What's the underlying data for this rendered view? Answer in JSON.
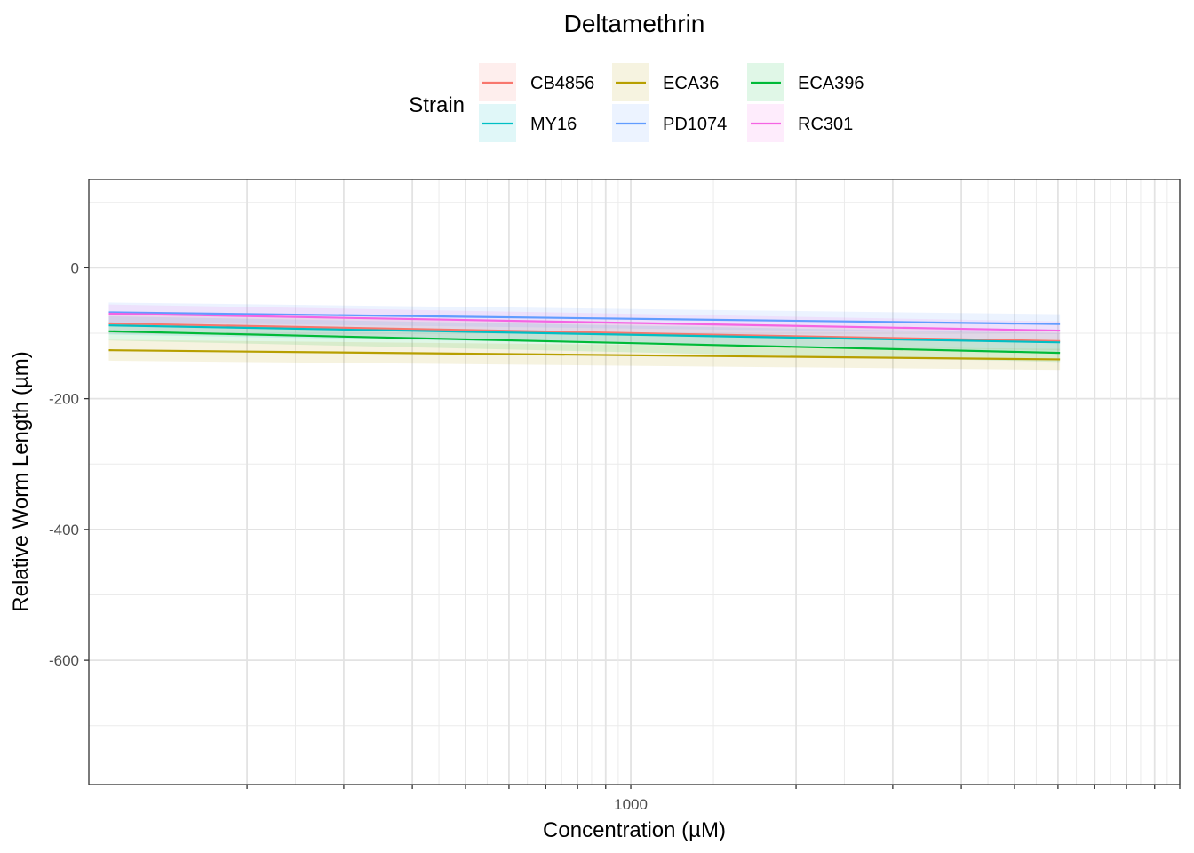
{
  "chart_data": {
    "type": "line",
    "title": "Deltamethrin",
    "xlabel": "Concentration (µM)",
    "ylabel": "Relative Worm Length (µm)",
    "x_scale": "log10",
    "xlim": [
      103,
      10000
    ],
    "ylim": [
      -790,
      135
    ],
    "x_ticks": [
      {
        "value": 1000,
        "label": "1000"
      }
    ],
    "y_ticks": [
      {
        "value": 0,
        "label": "0"
      },
      {
        "value": -200,
        "label": "-200"
      },
      {
        "value": -400,
        "label": "-400"
      },
      {
        "value": -600,
        "label": "-600"
      }
    ],
    "grid": true,
    "legend": {
      "title": "Strain",
      "position": "top"
    },
    "x": [
      112,
      6050
    ],
    "series": [
      {
        "name": "CB4856",
        "color": "#F8766D",
        "values": [
          -85,
          -112
        ],
        "ci_low": [
          -100,
          -126
        ],
        "ci_high": [
          -70,
          -98
        ]
      },
      {
        "name": "ECA36",
        "color": "#B79F00",
        "values": [
          -126,
          -140
        ],
        "ci_low": [
          -142,
          -156
        ],
        "ci_high": [
          -110,
          -124
        ]
      },
      {
        "name": "ECA396",
        "color": "#00BA38",
        "values": [
          -97,
          -130
        ],
        "ci_low": [
          -111,
          -144
        ],
        "ci_high": [
          -83,
          -116
        ]
      },
      {
        "name": "MY16",
        "color": "#00BFC4",
        "values": [
          -88,
          -114
        ],
        "ci_low": [
          -102,
          -128
        ],
        "ci_high": [
          -74,
          -100
        ]
      },
      {
        "name": "PD1074",
        "color": "#619CFF",
        "values": [
          -68,
          -86
        ],
        "ci_low": [
          -83,
          -101
        ],
        "ci_high": [
          -53,
          -71
        ]
      },
      {
        "name": "RC301",
        "color": "#F564E3",
        "values": [
          -70,
          -96
        ],
        "ci_low": [
          -84,
          -110
        ],
        "ci_high": [
          -56,
          -82
        ]
      }
    ]
  }
}
